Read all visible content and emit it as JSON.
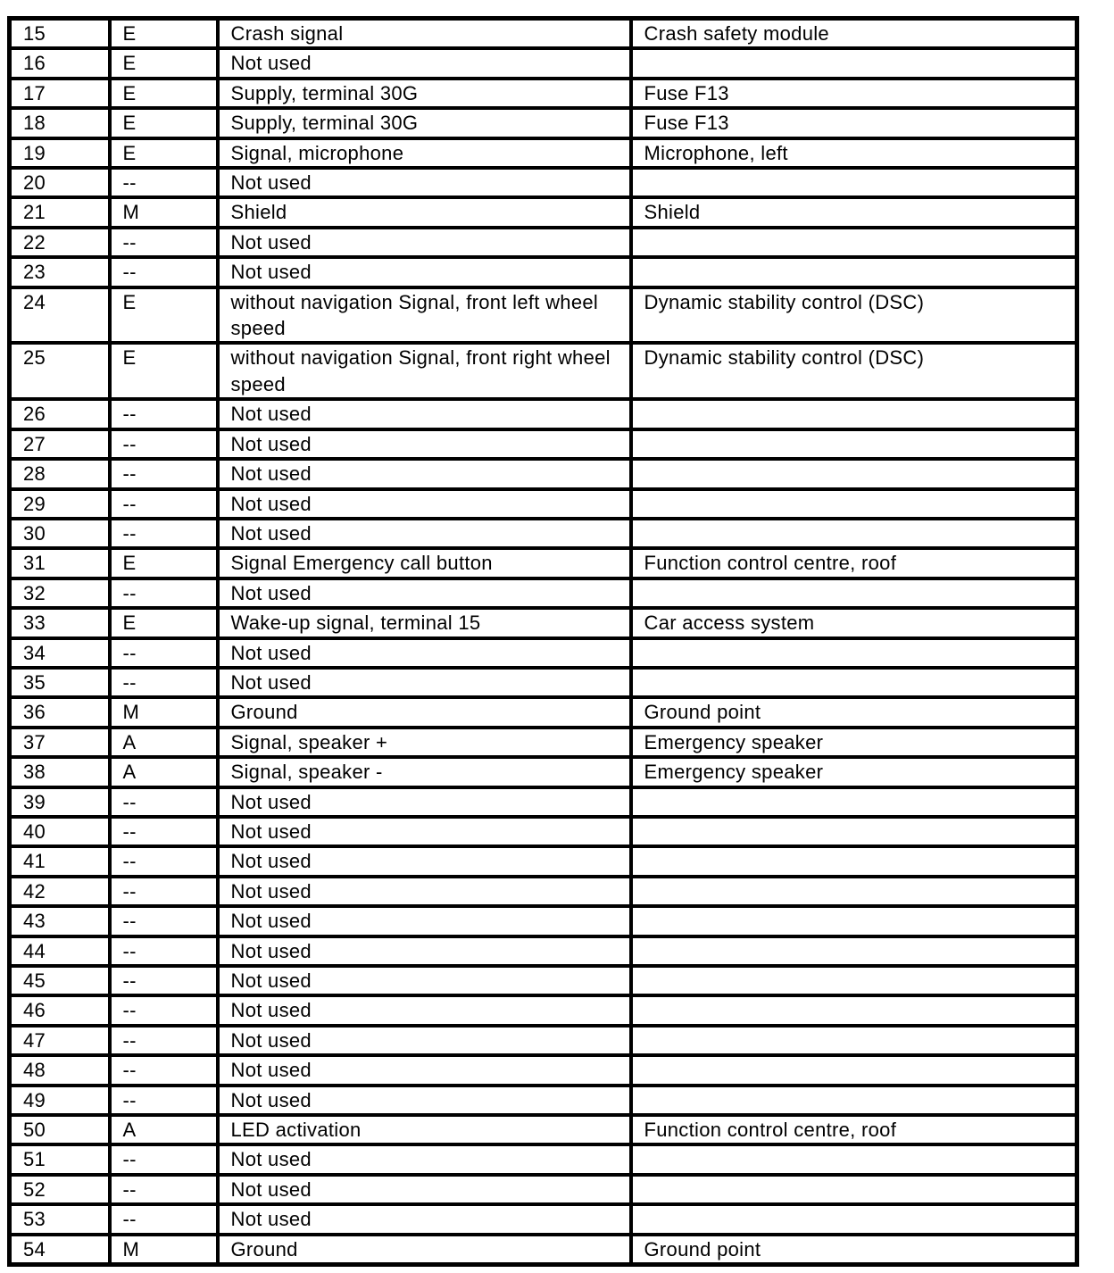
{
  "colors": {
    "background": "#ffffff",
    "border": "#000000",
    "text": "#000000"
  },
  "table": {
    "description": "Connector pin assignment table, pins 15-54",
    "rows": [
      {
        "pin": "15",
        "type": "E",
        "description": "Crash signal",
        "connected_to": "Crash safety module"
      },
      {
        "pin": "16",
        "type": "E",
        "description": "Not used",
        "connected_to": ""
      },
      {
        "pin": "17",
        "type": "E",
        "description": "Supply, terminal 30G",
        "connected_to": "Fuse F13"
      },
      {
        "pin": "18",
        "type": "E",
        "description": "Supply, terminal 30G",
        "connected_to": "Fuse F13"
      },
      {
        "pin": "19",
        "type": "E",
        "description": "Signal, microphone",
        "connected_to": "Microphone, left"
      },
      {
        "pin": "20",
        "type": "--",
        "description": "Not used",
        "connected_to": ""
      },
      {
        "pin": "21",
        "type": "M",
        "description": "Shield",
        "connected_to": "Shield"
      },
      {
        "pin": "22",
        "type": "--",
        "description": "Not used",
        "connected_to": ""
      },
      {
        "pin": "23",
        "type": "--",
        "description": "Not used",
        "connected_to": ""
      },
      {
        "pin": "24",
        "type": "E",
        "description": "without navigation Signal, front left wheel speed",
        "connected_to": "Dynamic stability control (DSC)"
      },
      {
        "pin": "25",
        "type": "E",
        "description": "without navigation Signal, front right wheel speed",
        "connected_to": "Dynamic stability control (DSC)"
      },
      {
        "pin": "26",
        "type": "--",
        "description": "Not used",
        "connected_to": ""
      },
      {
        "pin": "27",
        "type": "--",
        "description": "Not used",
        "connected_to": ""
      },
      {
        "pin": "28",
        "type": "--",
        "description": "Not used",
        "connected_to": ""
      },
      {
        "pin": "29",
        "type": "--",
        "description": "Not used",
        "connected_to": ""
      },
      {
        "pin": "30",
        "type": "--",
        "description": "Not used",
        "connected_to": ""
      },
      {
        "pin": "31",
        "type": "E",
        "description": "Signal Emergency call button",
        "connected_to": "Function control centre, roof"
      },
      {
        "pin": "32",
        "type": "--",
        "description": "Not used",
        "connected_to": ""
      },
      {
        "pin": "33",
        "type": "E",
        "description": "Wake-up signal, terminal 15",
        "connected_to": "Car access system"
      },
      {
        "pin": "34",
        "type": "--",
        "description": "Not used",
        "connected_to": ""
      },
      {
        "pin": "35",
        "type": "--",
        "description": "Not used",
        "connected_to": ""
      },
      {
        "pin": "36",
        "type": "M",
        "description": "Ground",
        "connected_to": "Ground point"
      },
      {
        "pin": "37",
        "type": "A",
        "description": "Signal, speaker +",
        "connected_to": "Emergency speaker"
      },
      {
        "pin": "38",
        "type": "A",
        "description": "Signal, speaker -",
        "connected_to": "Emergency speaker"
      },
      {
        "pin": "39",
        "type": "--",
        "description": "Not used",
        "connected_to": ""
      },
      {
        "pin": "40",
        "type": "--",
        "description": "Not used",
        "connected_to": ""
      },
      {
        "pin": "41",
        "type": "--",
        "description": "Not used",
        "connected_to": ""
      },
      {
        "pin": "42",
        "type": "--",
        "description": "Not used",
        "connected_to": ""
      },
      {
        "pin": "43",
        "type": "--",
        "description": "Not used",
        "connected_to": ""
      },
      {
        "pin": "44",
        "type": "--",
        "description": "Not used",
        "connected_to": ""
      },
      {
        "pin": "45",
        "type": "--",
        "description": "Not used",
        "connected_to": ""
      },
      {
        "pin": "46",
        "type": "--",
        "description": "Not used",
        "connected_to": ""
      },
      {
        "pin": "47",
        "type": "--",
        "description": "Not used",
        "connected_to": ""
      },
      {
        "pin": "48",
        "type": "--",
        "description": "Not used",
        "connected_to": ""
      },
      {
        "pin": "49",
        "type": "--",
        "description": "Not used",
        "connected_to": ""
      },
      {
        "pin": "50",
        "type": "A",
        "description": "LED activation",
        "connected_to": "Function control centre, roof"
      },
      {
        "pin": "51",
        "type": "--",
        "description": "Not used",
        "connected_to": ""
      },
      {
        "pin": "52",
        "type": "--",
        "description": "Not used",
        "connected_to": ""
      },
      {
        "pin": "53",
        "type": "--",
        "description": "Not used",
        "connected_to": ""
      },
      {
        "pin": "54",
        "type": "M",
        "description": "Ground",
        "connected_to": "Ground point"
      }
    ]
  }
}
